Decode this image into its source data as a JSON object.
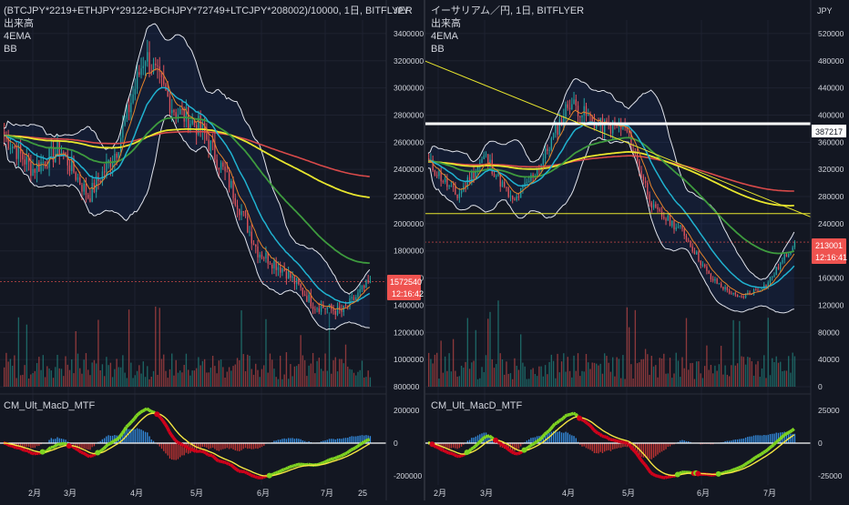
{
  "colors": {
    "bg": "#131722",
    "grid": "#1e2230",
    "axis_text": "#d1d4dc",
    "candle_up": "#26a69a",
    "candle_down": "#ef5350",
    "ema_fast": "#e6842a",
    "ema_mid": "#20b2d0",
    "ema_slow": "#3e9b3e",
    "ema_200": "#e8e62e",
    "sma_red": "#d94a4a",
    "bb": "#e0e3eb",
    "macd_fast": "#7ed321",
    "macd_slow": "#d0021b",
    "signal": "#f5e642",
    "hist_pos": "#3aa0ff",
    "hist_neg": "#e53935",
    "price_tag": "#ef5350"
  },
  "left_panel": {
    "title": "(BTCJPY*2219+ETHJPY*29122+BCHJPY*72749+LTCJPY*208002)/10000, 1日, BITFLYER",
    "indicator_lines": [
      "出来高",
      "4EMA",
      "BB"
    ],
    "unit": "JPY",
    "price_ticks": [
      "3400000",
      "3200000",
      "3000000",
      "2800000",
      "2600000",
      "2400000",
      "2200000",
      "2000000",
      "1800000",
      "1600000",
      "1400000",
      "1200000",
      "1000000",
      "800000"
    ],
    "last_price": "1572540",
    "countdown": "12:16:42",
    "macd_title": "CM_Ult_MacD_MTF",
    "macd_ticks": [
      "200000",
      "0",
      "-200000"
    ],
    "x_ticks": [
      "2月",
      "3月",
      "4月",
      "5月",
      "6月",
      "7月",
      "25"
    ]
  },
  "right_panel": {
    "title": "イーサリアム／円, 1日, BITFLYER",
    "indicator_lines": [
      "出来高",
      "4EMA",
      "BB"
    ],
    "unit": "JPY",
    "price_ticks": [
      "520000",
      "480000",
      "440000",
      "400000",
      "360000",
      "320000",
      "280000",
      "240000",
      "200000",
      "160000",
      "120000",
      "80000",
      "40000",
      "0"
    ],
    "level_label": "387217",
    "last_price": "213001",
    "countdown": "12:16:41",
    "macd_title": "CM_Ult_MacD_MTF",
    "macd_ticks": [
      "25000",
      "0",
      "-25000"
    ],
    "x_ticks": [
      "2月",
      "3月",
      "4月",
      "5月",
      "6月",
      "7月"
    ]
  },
  "chart_data": [
    {
      "type": "candlestick",
      "title": "(BTCJPY*2219+ETHJPY*29122+BCHJPY*72749+LTCJPY*208002)/10000, 1日, BITFLYER",
      "ylim": [
        800000,
        3500000
      ],
      "close_path_keypoints": [
        {
          "x": "1月中",
          "y": 2650000
        },
        {
          "x": "2月初",
          "y": 2400000
        },
        {
          "x": "2月中",
          "y": 2550000
        },
        {
          "x": "3月初",
          "y": 2200000
        },
        {
          "x": "3月中",
          "y": 2550000
        },
        {
          "x": "4月初",
          "y": 3250000
        },
        {
          "x": "4月中",
          "y": 2850000
        },
        {
          "x": "5月初",
          "y": 2700000
        },
        {
          "x": "5月中",
          "y": 2300000
        },
        {
          "x": "5月末",
          "y": 1800000
        },
        {
          "x": "6月中",
          "y": 1650000
        },
        {
          "x": "6月末",
          "y": 1400000
        },
        {
          "x": "7月中",
          "y": 1350000
        },
        {
          "x": "7月下",
          "y": 1572540
        }
      ],
      "emas": [
        "4EMA"
      ],
      "bollinger": true
    },
    {
      "type": "candlestick",
      "title": "イーサリアム／円, 1日, BITFLYER",
      "ylim": [
        0,
        540000
      ],
      "close_path_keypoints": [
        {
          "x": "1月中",
          "y": 330000
        },
        {
          "x": "2月初",
          "y": 280000
        },
        {
          "x": "2月中",
          "y": 340000
        },
        {
          "x": "3月初",
          "y": 270000
        },
        {
          "x": "3月中",
          "y": 330000
        },
        {
          "x": "4月初",
          "y": 420000
        },
        {
          "x": "4月中",
          "y": 385000
        },
        {
          "x": "5月初",
          "y": 380000
        },
        {
          "x": "5月中",
          "y": 260000
        },
        {
          "x": "5月末",
          "y": 230000
        },
        {
          "x": "6月中",
          "y": 160000
        },
        {
          "x": "6月末",
          "y": 130000
        },
        {
          "x": "7月中",
          "y": 150000
        },
        {
          "x": "7月下",
          "y": 213001
        }
      ],
      "horizontal_levels": [
        387217
      ],
      "emas": [
        "4EMA"
      ],
      "bollinger": true
    }
  ]
}
